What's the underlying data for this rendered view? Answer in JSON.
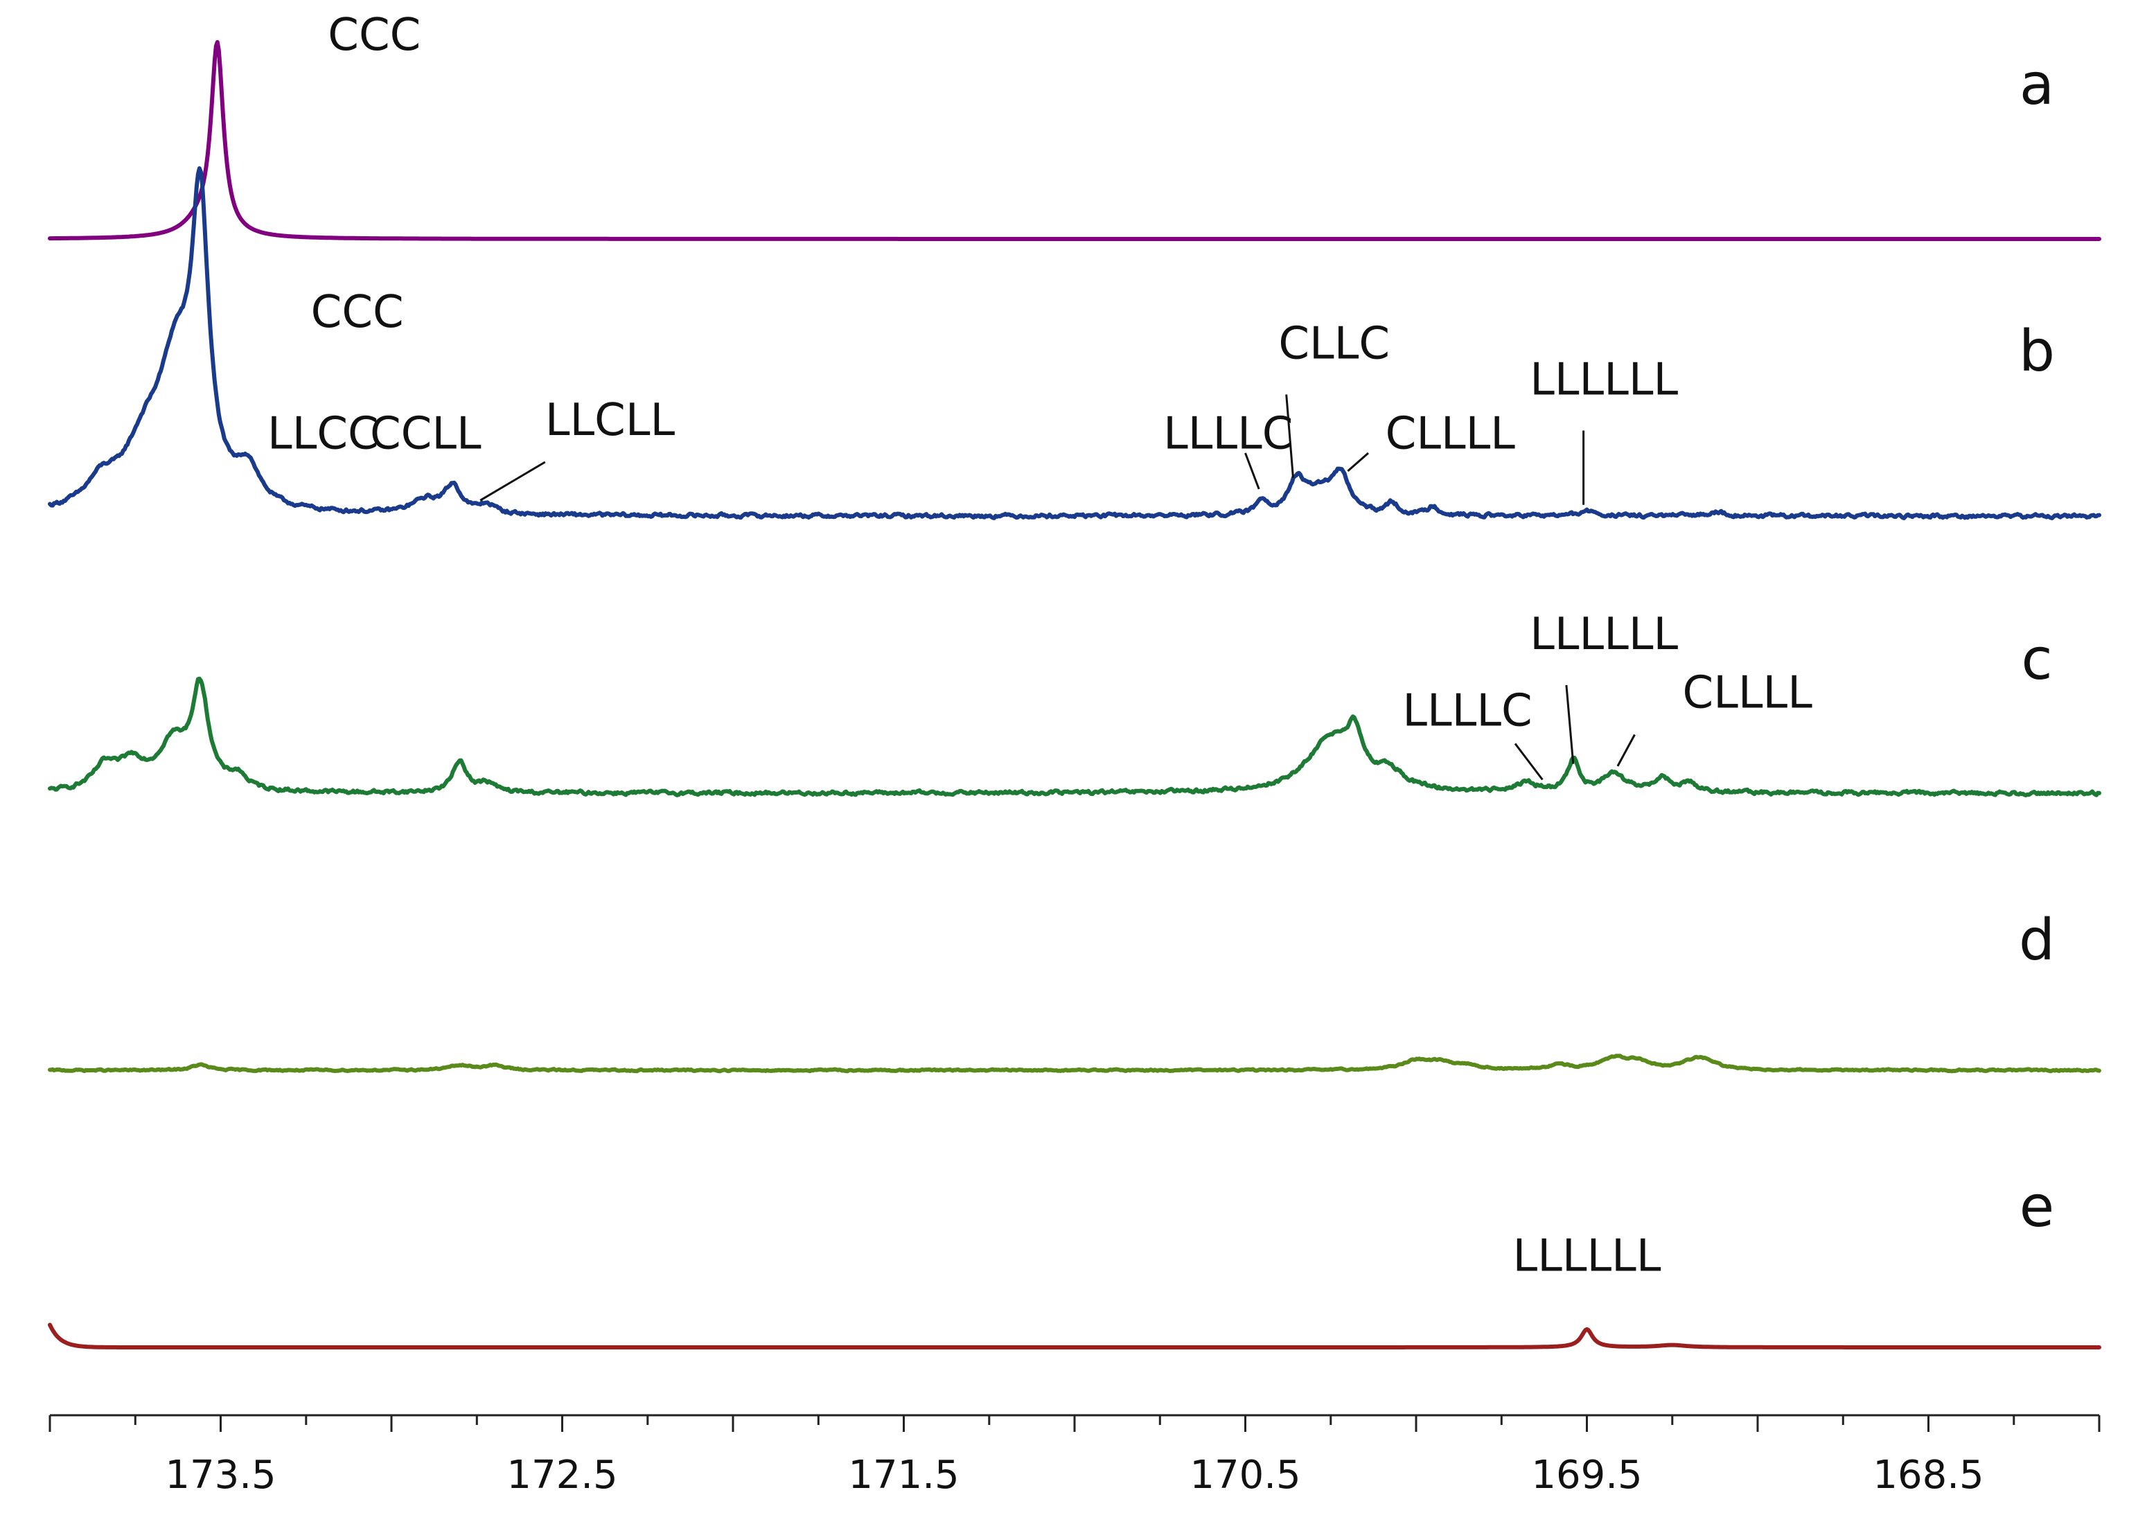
{
  "chart_data": {
    "type": "line",
    "title": "",
    "xlabel": "",
    "ylabel": "",
    "xlim": [
      174.0,
      168.0
    ],
    "x_reversed": true,
    "x_ticks_major": [
      173.5,
      172.5,
      171.5,
      170.5,
      169.5,
      168.5
    ],
    "x_tick_labels": [
      "173.5",
      "172.5",
      "171.5",
      "170.5",
      "169.5",
      "168.5"
    ],
    "x_ticks_minor_step": 0.25,
    "grid": false,
    "series": [
      {
        "name": "a",
        "color": "#800080",
        "peaks": [
          [
            173.51,
            0.42,
            0.022
          ],
          [
            173.56,
            0.03,
            0.06
          ]
        ],
        "noise": 0.0,
        "annotations": [
          {
            "text": "CCC",
            "x": 173.05,
            "y": 0.42,
            "leader": false
          }
        ]
      },
      {
        "name": "b",
        "color": "#1a3a8c",
        "peaks": [
          [
            173.56,
            0.62,
            0.03
          ],
          [
            173.63,
            0.28,
            0.06
          ],
          [
            173.72,
            0.13,
            0.08
          ],
          [
            173.42,
            0.08,
            0.04
          ],
          [
            173.85,
            0.05,
            0.05
          ],
          [
            172.82,
            0.06,
            0.03
          ],
          [
            172.9,
            0.03,
            0.05
          ],
          [
            172.72,
            0.02,
            0.03
          ],
          [
            170.45,
            0.03,
            0.02
          ],
          [
            170.35,
            0.07,
            0.03
          ],
          [
            170.22,
            0.08,
            0.03
          ],
          [
            170.28,
            0.05,
            0.05
          ],
          [
            170.07,
            0.025,
            0.02
          ],
          [
            169.95,
            0.02,
            0.02
          ],
          [
            169.5,
            0.01,
            0.03
          ],
          [
            169.12,
            0.01,
            0.03
          ]
        ],
        "noise": 0.007,
        "annotations": [
          {
            "text": "CCC",
            "x": 173.1,
            "y": 0.42,
            "leader": false
          },
          {
            "text": "LLCC",
            "x": 173.2,
            "y": 0.15,
            "leader": false
          },
          {
            "text": "CCLL",
            "x": 172.9,
            "y": 0.15,
            "leader": false
          },
          {
            "text": "LLCLL",
            "x": 172.36,
            "y": 0.18,
            "leader": true,
            "to": [
              172.74,
              0.035
            ],
            "from": [
              172.55,
              0.12
            ]
          },
          {
            "text": "CLLC",
            "x": 170.24,
            "y": 0.35,
            "leader": true,
            "to": [
              170.36,
              0.085
            ],
            "from": [
              170.38,
              0.27
            ]
          },
          {
            "text": "LLLLC",
            "x": 170.55,
            "y": 0.15,
            "leader": true,
            "to": [
              170.46,
              0.06
            ],
            "from": [
              170.5,
              0.14
            ]
          },
          {
            "text": "CLLLL",
            "x": 169.9,
            "y": 0.15,
            "leader": true,
            "to": [
              170.2,
              0.1
            ],
            "from": [
              170.14,
              0.14
            ]
          },
          {
            "text": "LLLLLL",
            "x": 169.45,
            "y": 0.27,
            "leader": true,
            "to": [
              169.51,
              0.025
            ],
            "from": [
              169.51,
              0.19
            ]
          }
        ]
      },
      {
        "name": "c",
        "color": "#1e7b36",
        "peaks": [
          [
            173.56,
            0.22,
            0.03
          ],
          [
            173.64,
            0.1,
            0.05
          ],
          [
            173.76,
            0.06,
            0.05
          ],
          [
            173.84,
            0.05,
            0.04
          ],
          [
            173.45,
            0.03,
            0.03
          ],
          [
            172.8,
            0.07,
            0.025
          ],
          [
            172.72,
            0.02,
            0.03
          ],
          [
            170.25,
            0.12,
            0.08
          ],
          [
            170.18,
            0.09,
            0.025
          ],
          [
            170.08,
            0.04,
            0.05
          ],
          [
            169.68,
            0.02,
            0.04
          ],
          [
            169.54,
            0.07,
            0.02
          ],
          [
            169.42,
            0.04,
            0.04
          ],
          [
            169.28,
            0.03,
            0.03
          ],
          [
            169.2,
            0.02,
            0.03
          ]
        ],
        "noise": 0.007,
        "annotations": [
          {
            "text": "LLLLLL",
            "x": 169.45,
            "y": 0.32,
            "leader": true,
            "to": [
              169.54,
              0.065
            ],
            "from": [
              169.56,
              0.24
            ]
          },
          {
            "text": "LLLLC",
            "x": 169.85,
            "y": 0.15,
            "leader": true,
            "to": [
              169.63,
              0.03
            ],
            "from": [
              169.71,
              0.11
            ]
          },
          {
            "text": "CLLLL",
            "x": 169.03,
            "y": 0.19,
            "leader": true,
            "to": [
              169.41,
              0.06
            ],
            "from": [
              169.36,
              0.13
            ]
          }
        ]
      },
      {
        "name": "d",
        "color": "#5a8a1a",
        "peaks": [
          [
            173.56,
            0.012,
            0.03
          ],
          [
            172.8,
            0.01,
            0.04
          ],
          [
            172.7,
            0.01,
            0.04
          ],
          [
            170.0,
            0.02,
            0.05
          ],
          [
            169.93,
            0.015,
            0.04
          ],
          [
            169.85,
            0.01,
            0.04
          ],
          [
            169.58,
            0.01,
            0.04
          ],
          [
            169.42,
            0.025,
            0.05
          ],
          [
            169.35,
            0.015,
            0.04
          ],
          [
            169.18,
            0.02,
            0.05
          ],
          [
            169.15,
            0.01,
            0.04
          ]
        ],
        "noise": 0.003,
        "annotations": []
      },
      {
        "name": "e",
        "color": "#9c1f1f",
        "peaks": [
          [
            169.5,
            0.04,
            0.02
          ],
          [
            169.25,
            0.005,
            0.05
          ]
        ],
        "edge": 0.05,
        "noise": 0.0,
        "annotations": [
          {
            "text": "LLLLLL",
            "x": 169.5,
            "y": 0.17,
            "leader": false
          }
        ]
      }
    ]
  }
}
